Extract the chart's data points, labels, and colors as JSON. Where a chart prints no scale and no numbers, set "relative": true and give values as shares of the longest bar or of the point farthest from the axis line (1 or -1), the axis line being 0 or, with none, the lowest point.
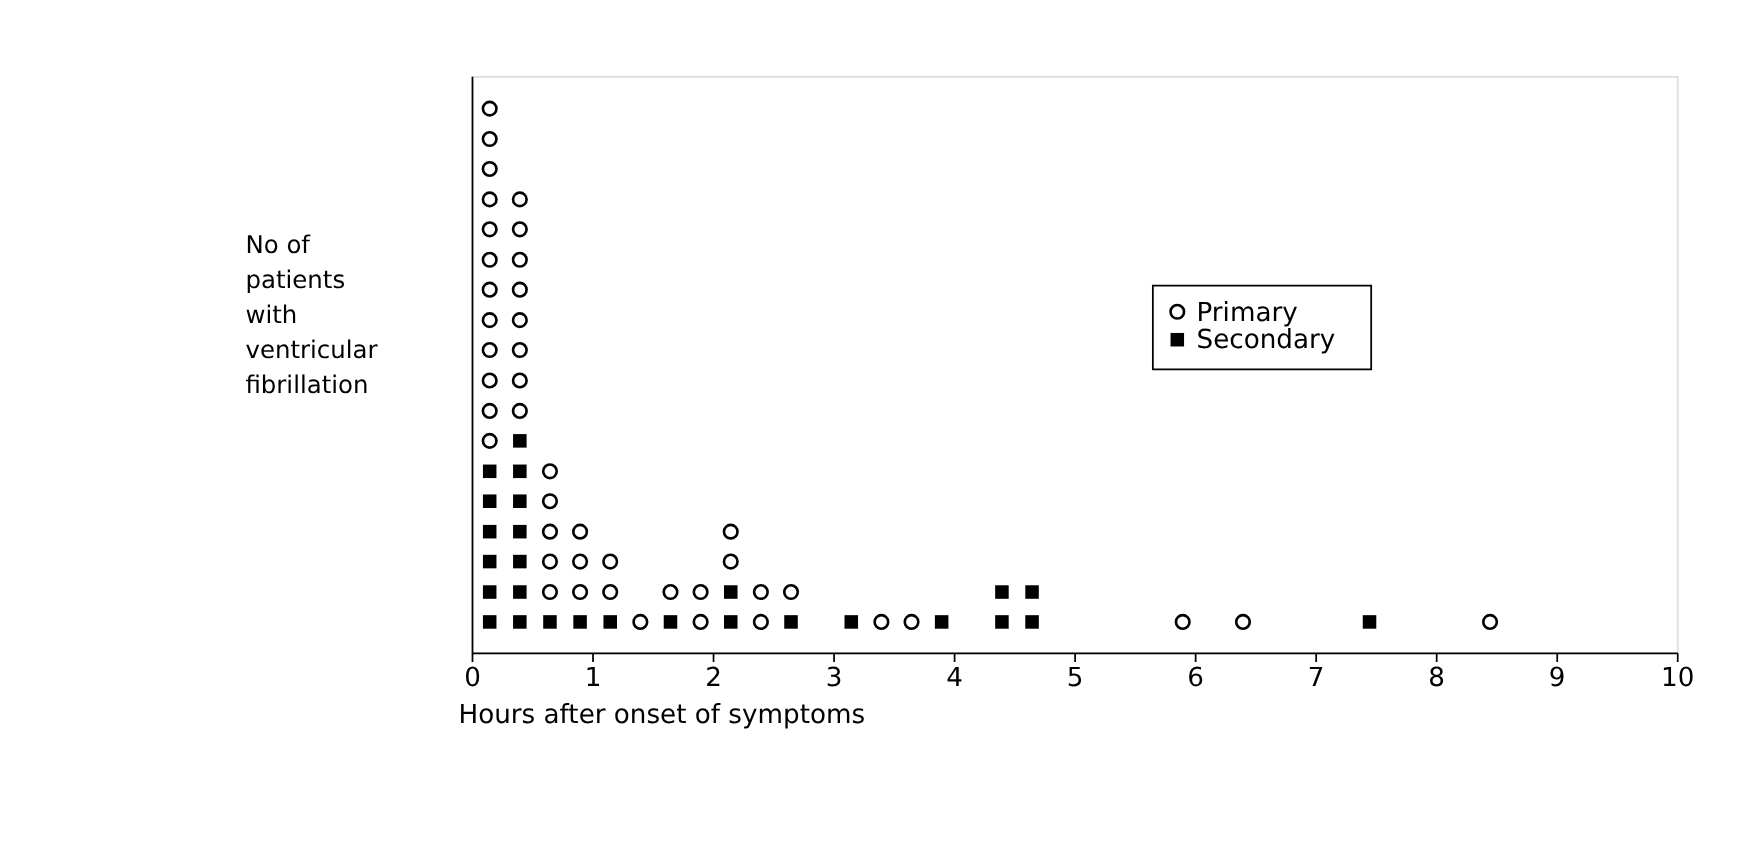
{
  "chart_data": {
    "type": "scatter",
    "xlabel": "Hours after onset of symptoms",
    "ylabel": "No of\npatients\nwith\nventricular\nfibrillation",
    "xlim": [
      0,
      10
    ],
    "xticks": [
      0,
      1,
      2,
      3,
      4,
      5,
      6,
      7,
      8,
      9,
      10
    ],
    "relative": true,
    "tick_labels": "x",
    "legend": "right",
    "series": [
      {
        "name": "Primary",
        "color": "#000000",
        "marker": "circle",
        "x": [
          0.15,
          0.15,
          0.15,
          0.15,
          0.15,
          0.15,
          0.15,
          0.15,
          0.15,
          0.15,
          0.15,
          0.15,
          0.4,
          0.4,
          0.4,
          0.4,
          0.4,
          0.4,
          0.4,
          0.4,
          0.65,
          0.65,
          0.65,
          0.65,
          0.65,
          0.9,
          0.9,
          0.9,
          1.15,
          1.15,
          1.4,
          1.65,
          1.9,
          1.9,
          2.15,
          2.15,
          2.4,
          2.4,
          2.65,
          3.4,
          3.65,
          5.9,
          6.4,
          8.45
        ],
        "values": [
          0.389,
          0.444,
          0.5,
          0.556,
          0.611,
          0.667,
          0.722,
          0.778,
          0.833,
          0.889,
          0.944,
          1,
          0.444,
          0.5,
          0.556,
          0.611,
          0.667,
          0.722,
          0.778,
          0.833,
          0.111,
          0.167,
          0.222,
          0.278,
          0.333,
          0.111,
          0.167,
          0.222,
          0.111,
          0.167,
          0.056,
          0.111,
          0.056,
          0.111,
          0.167,
          0.222,
          0.056,
          0.111,
          0.111,
          0.056,
          0.056,
          0.056,
          0.056,
          0.056
        ]
      },
      {
        "name": "Secondary",
        "color": "#000000",
        "marker": "square",
        "x": [
          0.15,
          0.15,
          0.15,
          0.15,
          0.15,
          0.15,
          0.4,
          0.4,
          0.4,
          0.4,
          0.4,
          0.4,
          0.4,
          0.65,
          0.9,
          1.15,
          1.65,
          2.15,
          2.15,
          2.65,
          3.15,
          3.9,
          4.4,
          4.4,
          4.65,
          4.65,
          7.45
        ],
        "values": [
          0.056,
          0.111,
          0.167,
          0.222,
          0.278,
          0.333,
          0.056,
          0.111,
          0.167,
          0.222,
          0.278,
          0.333,
          0.389,
          0.056,
          0.056,
          0.056,
          0.056,
          0.056,
          0.111,
          0.056,
          0.056,
          0.056,
          0.056,
          0.111,
          0.056,
          0.111,
          0.056
        ]
      }
    ]
  }
}
